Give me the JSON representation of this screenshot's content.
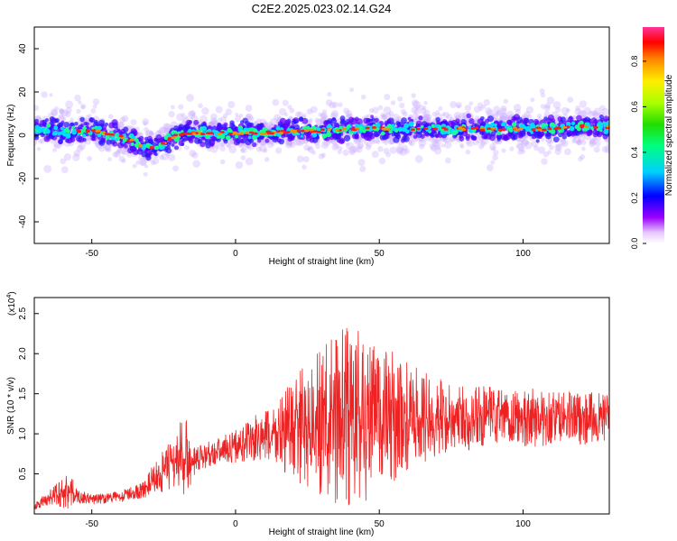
{
  "title": "C2E2.2025.023.02.14.G24",
  "chart_data": [
    {
      "type": "heatmap",
      "xlabel": "Height of straight line (km)",
      "ylabel": "Frequency (Hz)",
      "xlim": [
        -70,
        130
      ],
      "ylim": [
        -50,
        50
      ],
      "xticks": [
        -50,
        0,
        50,
        100
      ],
      "yticks": [
        -40,
        -20,
        0,
        20,
        40
      ],
      "colorbar": {
        "label": "Normalized spectral amplitude",
        "ticks": [
          "0.0",
          "0.2",
          "0.4",
          "0.6",
          "0.8"
        ],
        "range": [
          0,
          0.95
        ]
      },
      "ridge": {
        "x": [
          -70,
          -60,
          -50,
          -42,
          -35,
          -30,
          -26,
          -22,
          -18,
          -10,
          0,
          10,
          20,
          30,
          40,
          50,
          60,
          70,
          80,
          90,
          100,
          110,
          120,
          130
        ],
        "y": [
          3,
          2,
          2,
          0,
          -3,
          -6,
          -5,
          -1,
          1,
          1,
          1,
          1,
          2,
          2,
          3,
          3,
          3,
          3,
          3,
          3,
          3,
          3,
          4,
          4
        ]
      }
    },
    {
      "type": "line",
      "xlabel": "Height of straight line (km)",
      "ylabel": "SNR (10 * v/v)",
      "ylabel_scale": "(x10",
      "ylabel_exp": "4",
      "xlim": [
        -70,
        130
      ],
      "ylim": [
        0,
        2.7
      ],
      "xticks": [
        -50,
        0,
        50,
        100
      ],
      "yticks": [
        "0.5",
        "1.0",
        "1.5",
        "2.0",
        "2.5"
      ],
      "series": [
        {
          "color": "#ee2222",
          "envelope": {
            "x": [
              -70,
              -65,
              -58,
              -55,
              -50,
              -40,
              -32,
              -28,
              -24,
              -20,
              -18,
              -15,
              -10,
              -5,
              0,
              5,
              10,
              15,
              20,
              25,
              30,
              35,
              40,
              45,
              50,
              55,
              60,
              70,
              80,
              90,
              100,
              110,
              120,
              130
            ],
            "mean": [
              0.08,
              0.2,
              0.3,
              0.22,
              0.18,
              0.22,
              0.3,
              0.45,
              0.55,
              0.7,
              0.75,
              0.6,
              0.75,
              0.8,
              0.85,
              0.9,
              0.95,
              1.0,
              1.05,
              1.1,
              1.15,
              1.2,
              1.2,
              1.2,
              1.2,
              1.2,
              1.2,
              1.2,
              1.2,
              1.2,
              1.2,
              1.2,
              1.2,
              1.2
            ],
            "amp": [
              0.05,
              0.12,
              0.3,
              0.1,
              0.08,
              0.08,
              0.12,
              0.25,
              0.35,
              0.45,
              0.7,
              0.25,
              0.2,
              0.2,
              0.25,
              0.35,
              0.4,
              0.55,
              0.75,
              0.95,
              1.1,
              1.3,
              1.5,
              1.3,
              1.1,
              1.0,
              0.8,
              0.6,
              0.5,
              0.45,
              0.45,
              0.4,
              0.4,
              0.35
            ]
          }
        }
      ]
    }
  ]
}
